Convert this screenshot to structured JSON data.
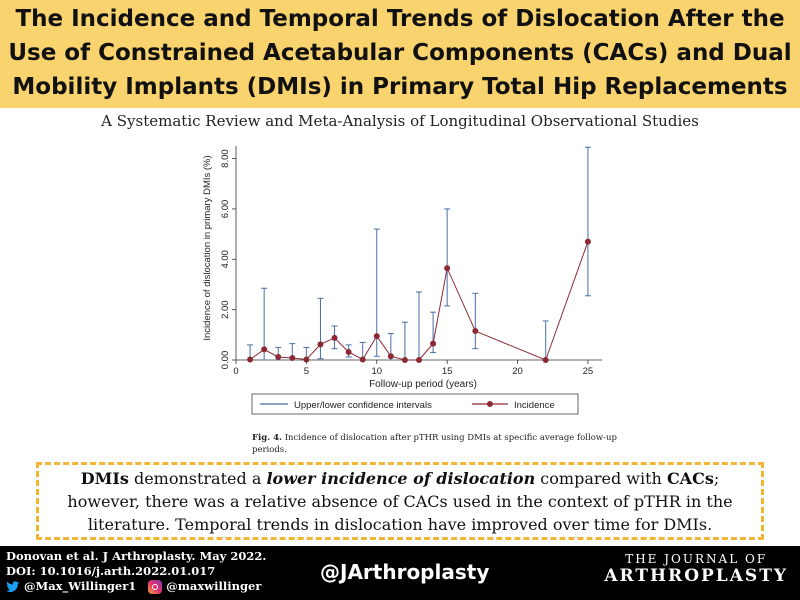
{
  "title": "The Incidence and Temporal Trends of Dislocation After the Use of Constrained Acetabular Components (CACs) and Dual Mobility Implants (DMIs) in Primary Total Hip Replacements",
  "subtitle": "A Systematic Review and Meta-Analysis of Longitudinal Observational Studies",
  "colors": {
    "title_band": "#f9d36e",
    "summary_border": "#f2b632",
    "ci_line": "#4a6fa5",
    "incidence": "#8b2a35",
    "footer": "#000000"
  },
  "chart_data": {
    "type": "line",
    "xlabel": "Follow-up period (years)",
    "ylabel": "Incidence of dislocation in primary DMIs (%)",
    "x_ticks": [
      0,
      5,
      10,
      15,
      20,
      25
    ],
    "y_ticks": [
      "0.00",
      "2.00",
      "4.00",
      "6.00",
      "8.00"
    ],
    "xlim": [
      0,
      26
    ],
    "ylim": [
      0,
      8.5
    ],
    "legend": [
      "Upper/lower confidence intervals",
      "Incidence"
    ],
    "legend_position": "bottom",
    "points": [
      {
        "x": 1,
        "y": 0.02,
        "lo": 0.0,
        "hi": 0.6
      },
      {
        "x": 2,
        "y": 0.42,
        "lo": 0.0,
        "hi": 2.85
      },
      {
        "x": 3,
        "y": 0.12,
        "lo": 0.0,
        "hi": 0.5
      },
      {
        "x": 4,
        "y": 0.08,
        "lo": 0.0,
        "hi": 0.65
      },
      {
        "x": 5,
        "y": 0.02,
        "lo": 0.0,
        "hi": 0.5
      },
      {
        "x": 6,
        "y": 0.62,
        "lo": 0.05,
        "hi": 2.45
      },
      {
        "x": 7,
        "y": 0.88,
        "lo": 0.45,
        "hi": 1.35
      },
      {
        "x": 8,
        "y": 0.32,
        "lo": 0.12,
        "hi": 0.6
      },
      {
        "x": 9,
        "y": 0.02,
        "lo": 0.0,
        "hi": 0.7
      },
      {
        "x": 10,
        "y": 0.95,
        "lo": 0.15,
        "hi": 5.2
      },
      {
        "x": 11,
        "y": 0.15,
        "lo": 0.0,
        "hi": 1.05
      },
      {
        "x": 12,
        "y": 0.0,
        "lo": 0.0,
        "hi": 1.5
      },
      {
        "x": 13,
        "y": 0.0,
        "lo": 0.0,
        "hi": 2.7
      },
      {
        "x": 14,
        "y": 0.65,
        "lo": 0.3,
        "hi": 1.9
      },
      {
        "x": 15,
        "y": 3.65,
        "lo": 2.15,
        "hi": 6.0
      },
      {
        "x": 17,
        "y": 1.15,
        "lo": 0.45,
        "hi": 2.65
      },
      {
        "x": 22,
        "y": 0.0,
        "lo": 0.0,
        "hi": 1.55
      },
      {
        "x": 25,
        "y": 4.7,
        "lo": 2.55,
        "hi": 8.45
      }
    ]
  },
  "caption": {
    "label": "Fig. 4.",
    "text": "Incidence of dislocation after pTHR using DMIs at specific average follow-up periods."
  },
  "summary": {
    "p1": "DMIs",
    "p2": " demonstrated a ",
    "p3": "lower incidence of dislocation",
    "p4": " compared with ",
    "p5": "CACs",
    "p6": "; however, there was a relative absence of CACs used in the context of pTHR in the literature. Temporal trends in dislocation have improved over time for DMIs."
  },
  "footer": {
    "citation": "Donovan et al. J Arthroplasty. May 2022.",
    "doi": "DOI: 10.1016/j.arth.2022.01.017",
    "twitter": "@Max_Willinger1",
    "instagram": "@maxwillinger",
    "handle": "@JArthroplasty",
    "journal_small": "THE JOURNAL OF",
    "journal_big": "ARTHROPLASTY"
  }
}
